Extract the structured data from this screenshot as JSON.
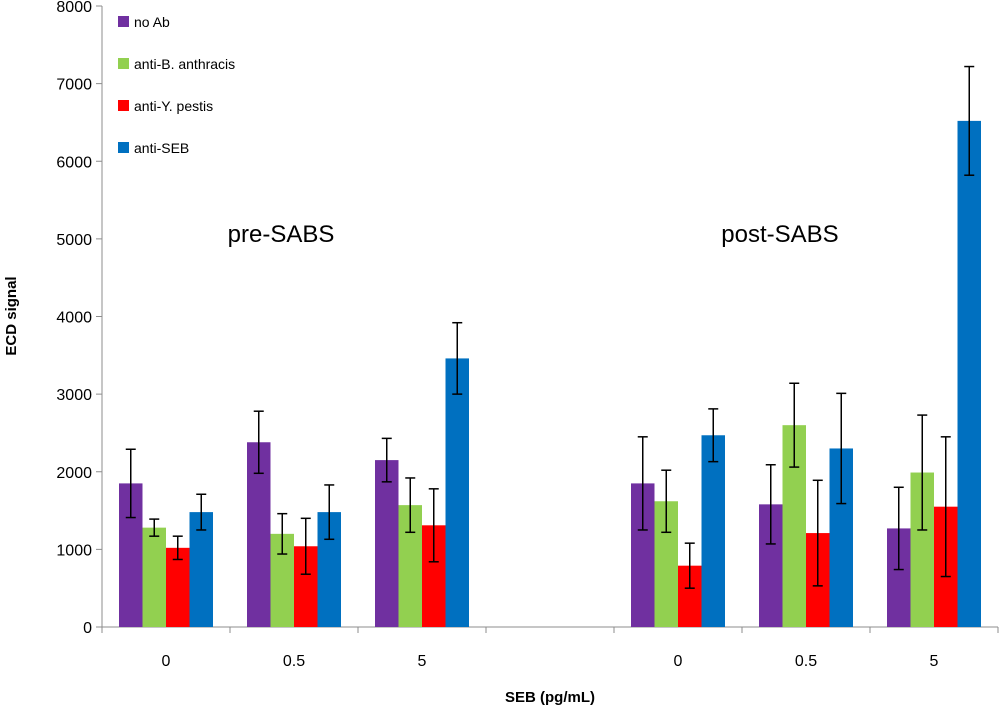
{
  "chart_data": {
    "type": "bar",
    "title": "",
    "xlabel": "SEB (pg/mL)",
    "ylabel": "ECD signal",
    "ylim": [
      0,
      8000
    ],
    "yticks": [
      "0",
      "1000",
      "2000",
      "3000",
      "4000",
      "5000",
      "6000",
      "7000",
      "8000"
    ],
    "grid": false,
    "legend_position": "top-left",
    "categories": [
      "0",
      "0.5",
      "5",
      "",
      "0",
      "0.5",
      "5"
    ],
    "annotations": [
      "pre-SABS",
      "post-SABS"
    ],
    "series": [
      {
        "name": "no Ab",
        "color": "#7030A0",
        "values": [
          1850,
          2380,
          2150,
          null,
          1850,
          1580,
          1270
        ],
        "errors": [
          440,
          400,
          280,
          null,
          600,
          510,
          530
        ]
      },
      {
        "name": "anti-B. anthracis",
        "color": "#92D050",
        "values": [
          1280,
          1200,
          1570,
          null,
          1620,
          2600,
          1990
        ],
        "errors": [
          110,
          260,
          350,
          null,
          400,
          540,
          740
        ]
      },
      {
        "name": "anti-Y. pestis",
        "color": "#FF0000",
        "values": [
          1020,
          1040,
          1310,
          null,
          790,
          1210,
          1550
        ],
        "errors": [
          150,
          360,
          470,
          null,
          290,
          680,
          900
        ]
      },
      {
        "name": "anti-SEB",
        "color": "#0070C0",
        "values": [
          1480,
          1480,
          3460,
          null,
          2470,
          2300,
          6520
        ],
        "errors": [
          230,
          350,
          460,
          null,
          340,
          710,
          700
        ]
      }
    ]
  }
}
